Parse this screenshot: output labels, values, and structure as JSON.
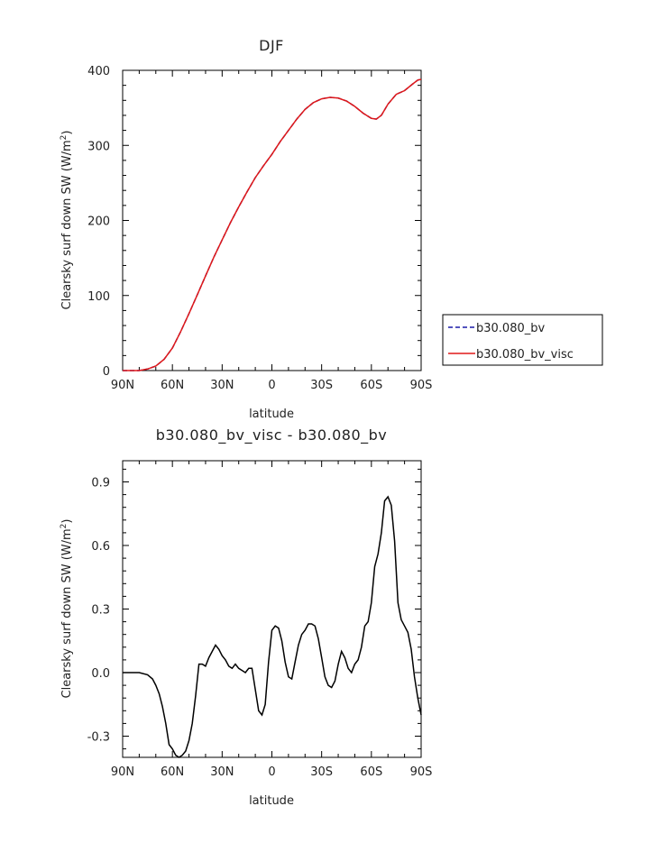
{
  "chart_data": [
    {
      "type": "line",
      "title": "DJF",
      "xlabel": "latitude",
      "ylabel": "Clearsky surf down SW (W/m²)",
      "ylabel_main": "Clearsky surf down SW (W/m",
      "ylabel_sup": "2",
      "ylabel_end": ")",
      "xlim": [
        -90,
        90
      ],
      "ylim": [
        0,
        400
      ],
      "x_ticks": [
        -90,
        -60,
        -30,
        0,
        30,
        60,
        90
      ],
      "x_tick_labels": [
        "90N",
        "60N",
        "30N",
        "0",
        "30S",
        "60S",
        "90S"
      ],
      "y_ticks": [
        0,
        100,
        200,
        300,
        400
      ],
      "y_tick_labels": [
        "0",
        "100",
        "200",
        "300",
        "400"
      ],
      "legend_position": "right",
      "series": [
        {
          "name": "b30.080_bv",
          "color": "#1a1aa8",
          "style": "dashed",
          "x": [
            -90,
            -80,
            -75,
            -70,
            -65,
            -60,
            -55,
            -50,
            -45,
            -40,
            -35,
            -30,
            -25,
            -20,
            -15,
            -10,
            -5,
            0,
            5,
            10,
            15,
            20,
            25,
            30,
            35,
            40,
            45,
            50,
            55,
            60,
            63,
            66,
            70,
            75,
            80,
            85,
            88,
            90
          ],
          "y": [
            0,
            0,
            2,
            6,
            15,
            30,
            52,
            76,
            101,
            126,
            151,
            174,
            197,
            218,
            238,
            257,
            273,
            288,
            305,
            320,
            335,
            348,
            357,
            362,
            364,
            363,
            359,
            352,
            343,
            336,
            335,
            340,
            355,
            368,
            373,
            382,
            387,
            388
          ]
        },
        {
          "name": "b30.080_bv_visc",
          "color": "#e01818",
          "style": "solid",
          "x": [
            -90,
            -80,
            -75,
            -70,
            -65,
            -60,
            -55,
            -50,
            -45,
            -40,
            -35,
            -30,
            -25,
            -20,
            -15,
            -10,
            -5,
            0,
            5,
            10,
            15,
            20,
            25,
            30,
            35,
            40,
            45,
            50,
            55,
            60,
            63,
            66,
            70,
            75,
            80,
            85,
            88,
            90
          ],
          "y": [
            0,
            0,
            2,
            6,
            15,
            30,
            52,
            76,
            101,
            126,
            151,
            174,
            197,
            218,
            238,
            257,
            273,
            288,
            305,
            320,
            335,
            348,
            357,
            362,
            364,
            363,
            359,
            352,
            343,
            336,
            335,
            340,
            355,
            368,
            373,
            382,
            387,
            388
          ]
        }
      ]
    },
    {
      "type": "line",
      "title": "b30.080_bv_visc - b30.080_bv",
      "xlabel": "latitude",
      "ylabel": "Clearsky surf down SW (W/m²)",
      "ylabel_main": "Clearsky surf down SW (W/m",
      "ylabel_sup": "2",
      "ylabel_end": ")",
      "xlim": [
        -90,
        90
      ],
      "ylim": [
        -0.4,
        1.0
      ],
      "x_ticks": [
        -90,
        -60,
        -30,
        0,
        30,
        60,
        90
      ],
      "x_tick_labels": [
        "90N",
        "60N",
        "30N",
        "0",
        "30S",
        "60S",
        "90S"
      ],
      "y_ticks": [
        -0.3,
        0.0,
        0.3,
        0.6,
        0.9
      ],
      "y_tick_labels": [
        "-0.3",
        "0.0",
        "0.3",
        "0.6",
        "0.9"
      ],
      "series": [
        {
          "color": "#000000",
          "style": "solid",
          "x": [
            -90,
            -80,
            -75,
            -72,
            -70,
            -68,
            -66,
            -64,
            -62,
            -60,
            -58,
            -56,
            -54,
            -52,
            -50,
            -48,
            -46,
            -44,
            -42,
            -40,
            -38,
            -36,
            -34,
            -32,
            -30,
            -28,
            -26,
            -24,
            -22,
            -20,
            -18,
            -16,
            -14,
            -12,
            -10,
            -8,
            -6,
            -4,
            -2,
            0,
            2,
            4,
            6,
            8,
            10,
            12,
            14,
            16,
            18,
            20,
            22,
            24,
            26,
            28,
            30,
            32,
            34,
            36,
            38,
            40,
            42,
            44,
            46,
            48,
            50,
            52,
            54,
            56,
            58,
            60,
            62,
            64,
            66,
            68,
            70,
            72,
            74,
            76,
            78,
            80,
            82,
            84,
            86,
            88,
            90
          ],
          "y": [
            0,
            0,
            -0.01,
            -0.03,
            -0.06,
            -0.1,
            -0.16,
            -0.24,
            -0.34,
            -0.36,
            -0.39,
            -0.4,
            -0.39,
            -0.37,
            -0.32,
            -0.24,
            -0.11,
            0.04,
            0.04,
            0.03,
            0.07,
            0.1,
            0.13,
            0.11,
            0.08,
            0.06,
            0.03,
            0.02,
            0.04,
            0.02,
            0.01,
            0.0,
            0.02,
            0.02,
            -0.08,
            -0.18,
            -0.2,
            -0.15,
            0.05,
            0.2,
            0.22,
            0.21,
            0.15,
            0.05,
            -0.02,
            -0.03,
            0.05,
            0.13,
            0.18,
            0.2,
            0.23,
            0.23,
            0.22,
            0.16,
            0.07,
            -0.02,
            -0.06,
            -0.07,
            -0.04,
            0.04,
            0.1,
            0.07,
            0.02,
            0.0,
            0.04,
            0.06,
            0.12,
            0.22,
            0.24,
            0.33,
            0.5,
            0.56,
            0.66,
            0.81,
            0.83,
            0.79,
            0.62,
            0.33,
            0.25,
            0.22,
            0.19,
            0.11,
            -0.02,
            -0.12,
            -0.2
          ]
        }
      ]
    }
  ]
}
